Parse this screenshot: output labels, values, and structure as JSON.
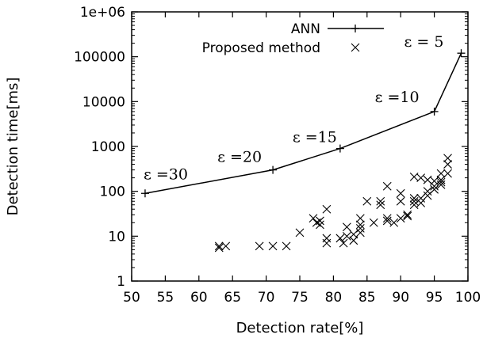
{
  "chart_data": {
    "type": "scatter",
    "xlabel": "Detection rate[%]",
    "ylabel": "Detection time[ms]",
    "xlim": [
      50,
      100
    ],
    "ylim": [
      1,
      1000000
    ],
    "yscale": "log",
    "grid": false,
    "legend_position": "top-right",
    "x_ticks": [
      "50",
      "55",
      "60",
      "65",
      "70",
      "75",
      "80",
      "85",
      "90",
      "95",
      "100"
    ],
    "y_ticks": [
      "1",
      "10",
      "100",
      "1000",
      "10000",
      "100000",
      "1e+06"
    ],
    "series": [
      {
        "name": "ANN",
        "style": "line-plus",
        "points": [
          [
            52,
            90
          ],
          [
            71,
            300
          ],
          [
            81,
            900
          ],
          [
            95,
            6000
          ],
          [
            99,
            120000
          ]
        ]
      },
      {
        "name": "Proposed method",
        "style": "cross",
        "points": [
          [
            63,
            6
          ],
          [
            63,
            5.5
          ],
          [
            64,
            6
          ],
          [
            69,
            6
          ],
          [
            71,
            6
          ],
          [
            73,
            6
          ],
          [
            75,
            12
          ],
          [
            77,
            25
          ],
          [
            77.5,
            20
          ],
          [
            78,
            18
          ],
          [
            78,
            22
          ],
          [
            79,
            40
          ],
          [
            79,
            9
          ],
          [
            79,
            7
          ],
          [
            81,
            9
          ],
          [
            81.5,
            7
          ],
          [
            82,
            10
          ],
          [
            82,
            16
          ],
          [
            83,
            8
          ],
          [
            83,
            11
          ],
          [
            84,
            12
          ],
          [
            84,
            15
          ],
          [
            84,
            18
          ],
          [
            84,
            25
          ],
          [
            85,
            60
          ],
          [
            86,
            20
          ],
          [
            87,
            50
          ],
          [
            87,
            60
          ],
          [
            88,
            22
          ],
          [
            88,
            25
          ],
          [
            88,
            130
          ],
          [
            89,
            20
          ],
          [
            90,
            25
          ],
          [
            90,
            60
          ],
          [
            90,
            90
          ],
          [
            91,
            28
          ],
          [
            91,
            30
          ],
          [
            92,
            50
          ],
          [
            92,
            60
          ],
          [
            92,
            70
          ],
          [
            92,
            210
          ],
          [
            93,
            55
          ],
          [
            93,
            70
          ],
          [
            93,
            200
          ],
          [
            94,
            80
          ],
          [
            94,
            100
          ],
          [
            94,
            180
          ],
          [
            95,
            110
          ],
          [
            95,
            130
          ],
          [
            95,
            170
          ],
          [
            96,
            140
          ],
          [
            96,
            160
          ],
          [
            96,
            180
          ],
          [
            96,
            250
          ],
          [
            97,
            250
          ],
          [
            97,
            400
          ],
          [
            97,
            550
          ]
        ]
      }
    ],
    "annotations": [
      {
        "text": "ε =30",
        "x": 52,
        "y": 90
      },
      {
        "text": "ε =20",
        "x": 71,
        "y": 300
      },
      {
        "text": "ε =15",
        "x": 81,
        "y": 900
      },
      {
        "text": "ε =10",
        "x": 95,
        "y": 6000
      },
      {
        "text": "ε =  5",
        "x": 99,
        "y": 120000
      }
    ]
  }
}
